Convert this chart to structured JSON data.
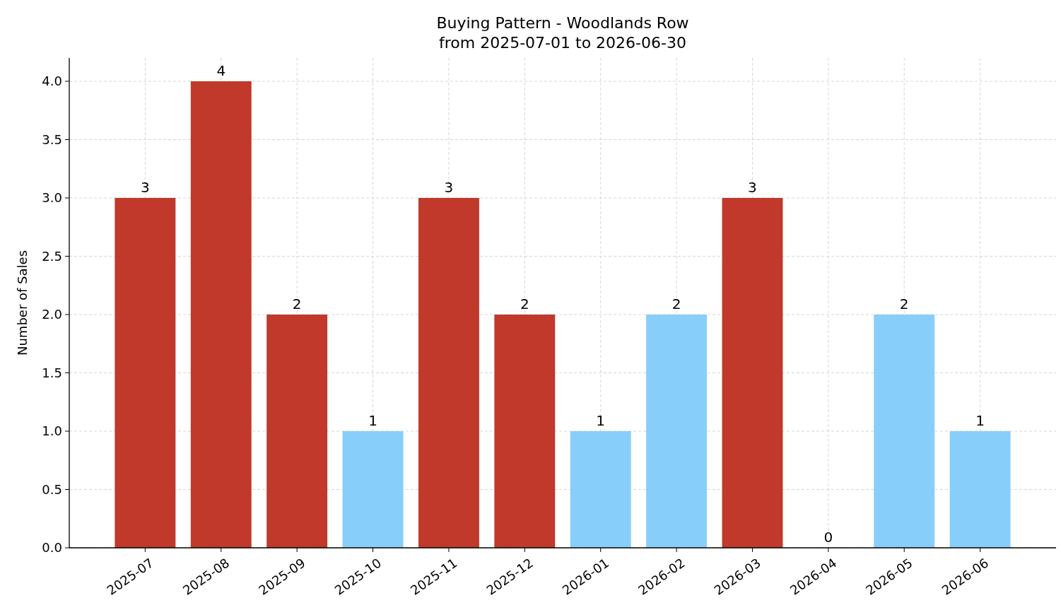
{
  "chart_data": {
    "type": "bar",
    "title": "Buying Pattern - Woodlands Row",
    "subtitle": "from 2025-07-01 to 2026-06-30",
    "ylabel": "Number of Sales",
    "categories": [
      "2025-07",
      "2025-08",
      "2025-09",
      "2025-10",
      "2025-11",
      "2025-12",
      "2026-01",
      "2026-02",
      "2026-03",
      "2026-04",
      "2026-05",
      "2026-06"
    ],
    "values": [
      3,
      4,
      2,
      1,
      3,
      2,
      1,
      2,
      3,
      0,
      2,
      1
    ],
    "colors": [
      "#c0392b",
      "#c0392b",
      "#c0392b",
      "#87cefa",
      "#c0392b",
      "#c0392b",
      "#87cefa",
      "#87cefa",
      "#c0392b",
      "#c0392b",
      "#87cefa",
      "#87cefa"
    ],
    "ylim": [
      0,
      4.2
    ],
    "yticks": [
      {
        "value": 0,
        "label": "0.0"
      },
      {
        "value": 0.5,
        "label": "0.5"
      },
      {
        "value": 1,
        "label": "1.0"
      },
      {
        "value": 1.5,
        "label": "1.5"
      },
      {
        "value": 2,
        "label": "2.0"
      },
      {
        "value": 2.5,
        "label": "2.5"
      },
      {
        "value": 3,
        "label": "3.0"
      },
      {
        "value": 3.5,
        "label": "3.5"
      },
      {
        "value": 4,
        "label": "4.0"
      }
    ],
    "grid": true,
    "data_labels": true
  }
}
